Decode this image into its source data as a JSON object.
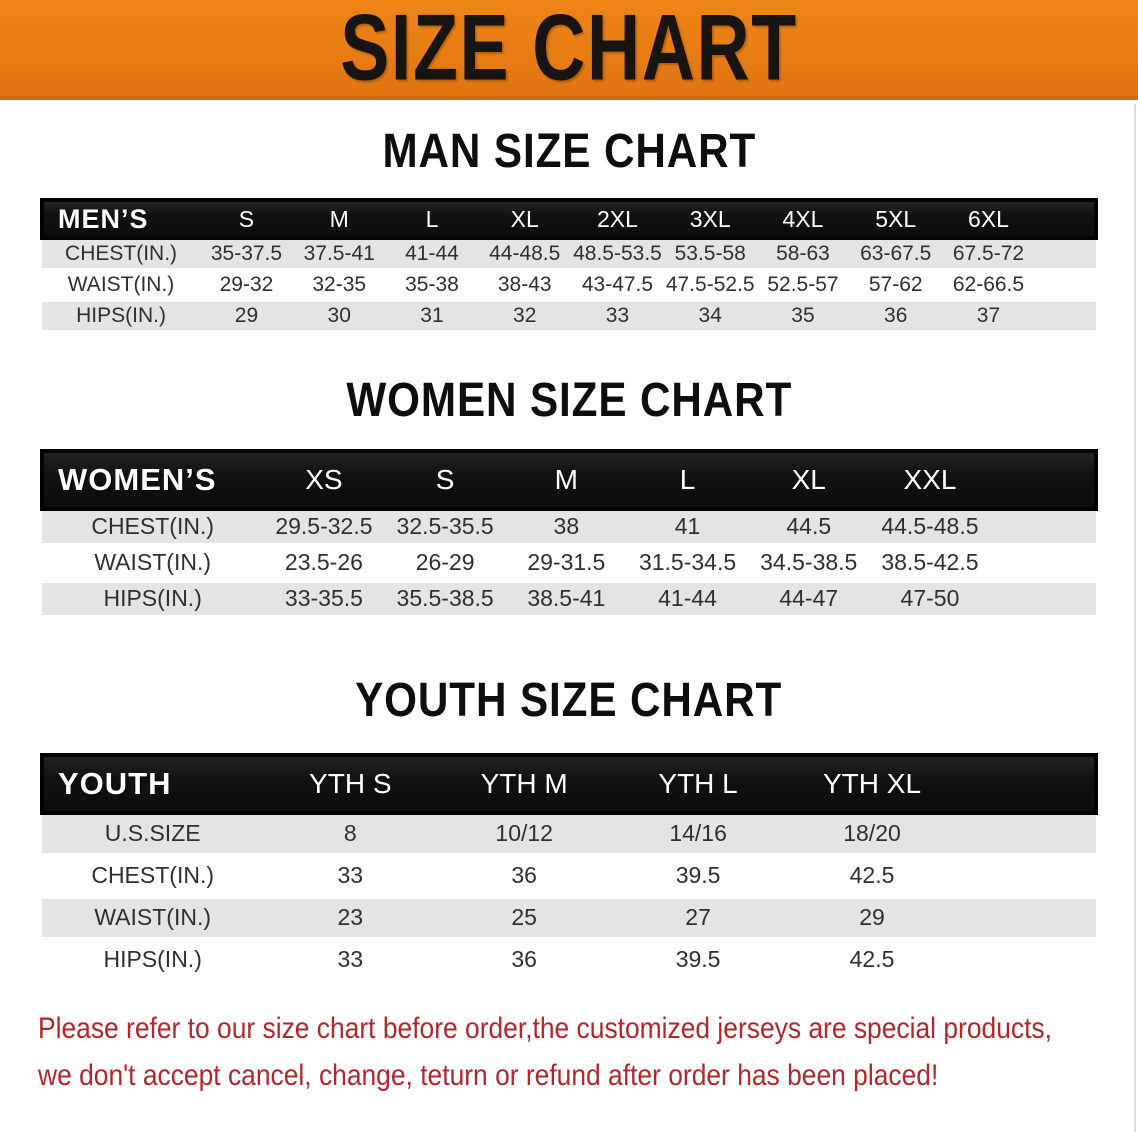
{
  "banner": {
    "title": "SIZE CHART"
  },
  "colors": {
    "banner_orange": "#e87d14",
    "header_bar_black": "#121212",
    "row_gray": "#e5e4e2",
    "footer_red": "#b3272a"
  },
  "sections": [
    {
      "id": "men",
      "heading": "MAN SIZE CHART",
      "corner_label": "MEN’S",
      "size_columns": [
        "S",
        "M",
        "L",
        "XL",
        "2XL",
        "3XL",
        "4XL",
        "5XL",
        "6XL"
      ],
      "rows": [
        {
          "label": "CHEST(IN.)",
          "values": [
            "35-37.5",
            "37.5-41",
            "41-44",
            "44-48.5",
            "48.5-53.5",
            "53.5-58",
            "58-63",
            "63-67.5",
            "67.5-72"
          ]
        },
        {
          "label": "WAIST(IN.)",
          "values": [
            "29-32",
            "32-35",
            "35-38",
            "38-43",
            "43-47.5",
            "47.5-52.5",
            "52.5-57",
            "57-62",
            "62-66.5"
          ]
        },
        {
          "label": "HIPS(IN.)",
          "values": [
            "29",
            "30",
            "31",
            "32",
            "33",
            "34",
            "35",
            "36",
            "37"
          ]
        }
      ]
    },
    {
      "id": "women",
      "heading": "WOMEN SIZE CHART",
      "corner_label": "WOMEN’S",
      "size_columns": [
        "XS",
        "S",
        "M",
        "L",
        "XL",
        "XXL"
      ],
      "rows": [
        {
          "label": "CHEST(IN.)",
          "values": [
            "29.5-32.5",
            "32.5-35.5",
            "38",
            "41",
            "44.5",
            "44.5-48.5"
          ]
        },
        {
          "label": "WAIST(IN.)",
          "values": [
            "23.5-26",
            "26-29",
            "29-31.5",
            "31.5-34.5",
            "34.5-38.5",
            "38.5-42.5"
          ]
        },
        {
          "label": "HIPS(IN.)",
          "values": [
            "33-35.5",
            "35.5-38.5",
            "38.5-41",
            "41-44",
            "44-47",
            "47-50"
          ]
        }
      ]
    },
    {
      "id": "youth",
      "heading": "YOUTH SIZE CHART",
      "corner_label": "YOUTH",
      "size_columns": [
        "YTH S",
        "YTH M",
        "YTH L",
        "YTH XL"
      ],
      "rows": [
        {
          "label": "U.S.SIZE",
          "values": [
            "8",
            "10/12",
            "14/16",
            "18/20"
          ]
        },
        {
          "label": "CHEST(IN.)",
          "values": [
            "33",
            "36",
            "39.5",
            "42.5"
          ]
        },
        {
          "label": "WAIST(IN.)",
          "values": [
            "23",
            "25",
            "27",
            "29"
          ]
        },
        {
          "label": "HIPS(IN.)",
          "values": [
            "33",
            "36",
            "39.5",
            "42.5"
          ]
        }
      ]
    }
  ],
  "footer": {
    "line1": "Please refer to our size chart before order,the customized jerseys are special products,",
    "line2": "we don't accept cancel, change, teturn or refund after order has been placed!"
  }
}
